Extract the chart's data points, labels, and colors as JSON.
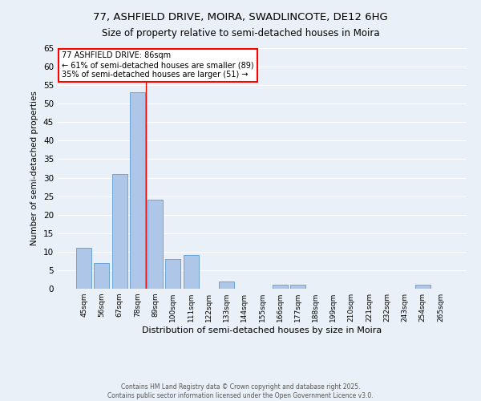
{
  "title": "77, ASHFIELD DRIVE, MOIRA, SWADLINCOTE, DE12 6HG",
  "subtitle": "Size of property relative to semi-detached houses in Moira",
  "xlabel": "Distribution of semi-detached houses by size in Moira",
  "ylabel": "Number of semi-detached properties",
  "categories": [
    "45sqm",
    "56sqm",
    "67sqm",
    "78sqm",
    "89sqm",
    "100sqm",
    "111sqm",
    "122sqm",
    "133sqm",
    "144sqm",
    "155sqm",
    "166sqm",
    "177sqm",
    "188sqm",
    "199sqm",
    "210sqm",
    "221sqm",
    "232sqm",
    "243sqm",
    "254sqm",
    "265sqm"
  ],
  "values": [
    11,
    7,
    31,
    53,
    24,
    8,
    9,
    0,
    2,
    0,
    0,
    1,
    1,
    0,
    0,
    0,
    0,
    0,
    0,
    1,
    0
  ],
  "bar_color": "#aec6e8",
  "bar_edgecolor": "#5b9bd5",
  "highlight_index": 4,
  "annotation_title": "77 ASHFIELD DRIVE: 86sqm",
  "annotation_line1": "← 61% of semi-detached houses are smaller (89)",
  "annotation_line2": "35% of semi-detached houses are larger (51) →",
  "footer_line1": "Contains HM Land Registry data © Crown copyright and database right 2025.",
  "footer_line2": "Contains public sector information licensed under the Open Government Licence v3.0.",
  "ylim": [
    0,
    65
  ],
  "yticks": [
    0,
    5,
    10,
    15,
    20,
    25,
    30,
    35,
    40,
    45,
    50,
    55,
    60,
    65
  ],
  "bg_color": "#eaf0f8",
  "plot_bg_color": "#eaf0f8",
  "grid_color": "#ffffff",
  "title_fontsize": 9.5,
  "subtitle_fontsize": 8.5,
  "xlabel_fontsize": 8,
  "ylabel_fontsize": 7.5,
  "tick_fontsize": 6.5,
  "annotation_fontsize": 7,
  "footer_fontsize": 5.5
}
